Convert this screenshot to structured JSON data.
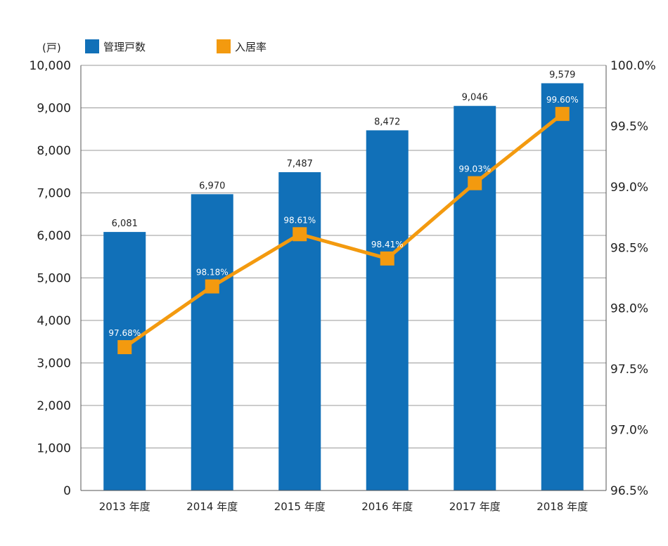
{
  "chart_data": {
    "type": "bar+line",
    "y_unit_label": "(戸)",
    "categories": [
      "2013 年度",
      "2014 年度",
      "2015 年度",
      "2016 年度",
      "2017 年度",
      "2018 年度"
    ],
    "series": [
      {
        "name": "管理戸数",
        "type": "bar",
        "axis": "left",
        "color": "#1170b8",
        "values": [
          6081,
          6970,
          7487,
          8472,
          9046,
          9579
        ],
        "labels": [
          "6,081",
          "6,970",
          "7,487",
          "8,472",
          "9,046",
          "9,579"
        ]
      },
      {
        "name": "入居率",
        "type": "line",
        "axis": "right",
        "color": "#f39a0f",
        "values": [
          97.68,
          98.18,
          98.61,
          98.41,
          99.03,
          99.6
        ],
        "labels": [
          "97.68%",
          "98.18%",
          "98.61%",
          "98.41%",
          "99.03%",
          "99.60%"
        ]
      }
    ],
    "y_left": {
      "range": [
        0,
        10000
      ],
      "ticks": [
        0,
        1000,
        2000,
        3000,
        4000,
        5000,
        6000,
        7000,
        8000,
        9000,
        10000
      ],
      "tick_labels": [
        "0",
        "1,000",
        "2,000",
        "3,000",
        "4,000",
        "5,000",
        "6,000",
        "7,000",
        "8,000",
        "9,000",
        "10,000"
      ]
    },
    "y_right": {
      "range": [
        96.5,
        100.0
      ],
      "ticks": [
        96.5,
        97.0,
        97.5,
        98.0,
        98.5,
        99.0,
        99.5,
        100.0
      ],
      "tick_labels": [
        "96.5%",
        "97.0%",
        "97.5%",
        "98.0%",
        "98.5%",
        "99.0%",
        "99.5%",
        "100.0%"
      ]
    },
    "grid": true,
    "legend_position": "top-left"
  }
}
